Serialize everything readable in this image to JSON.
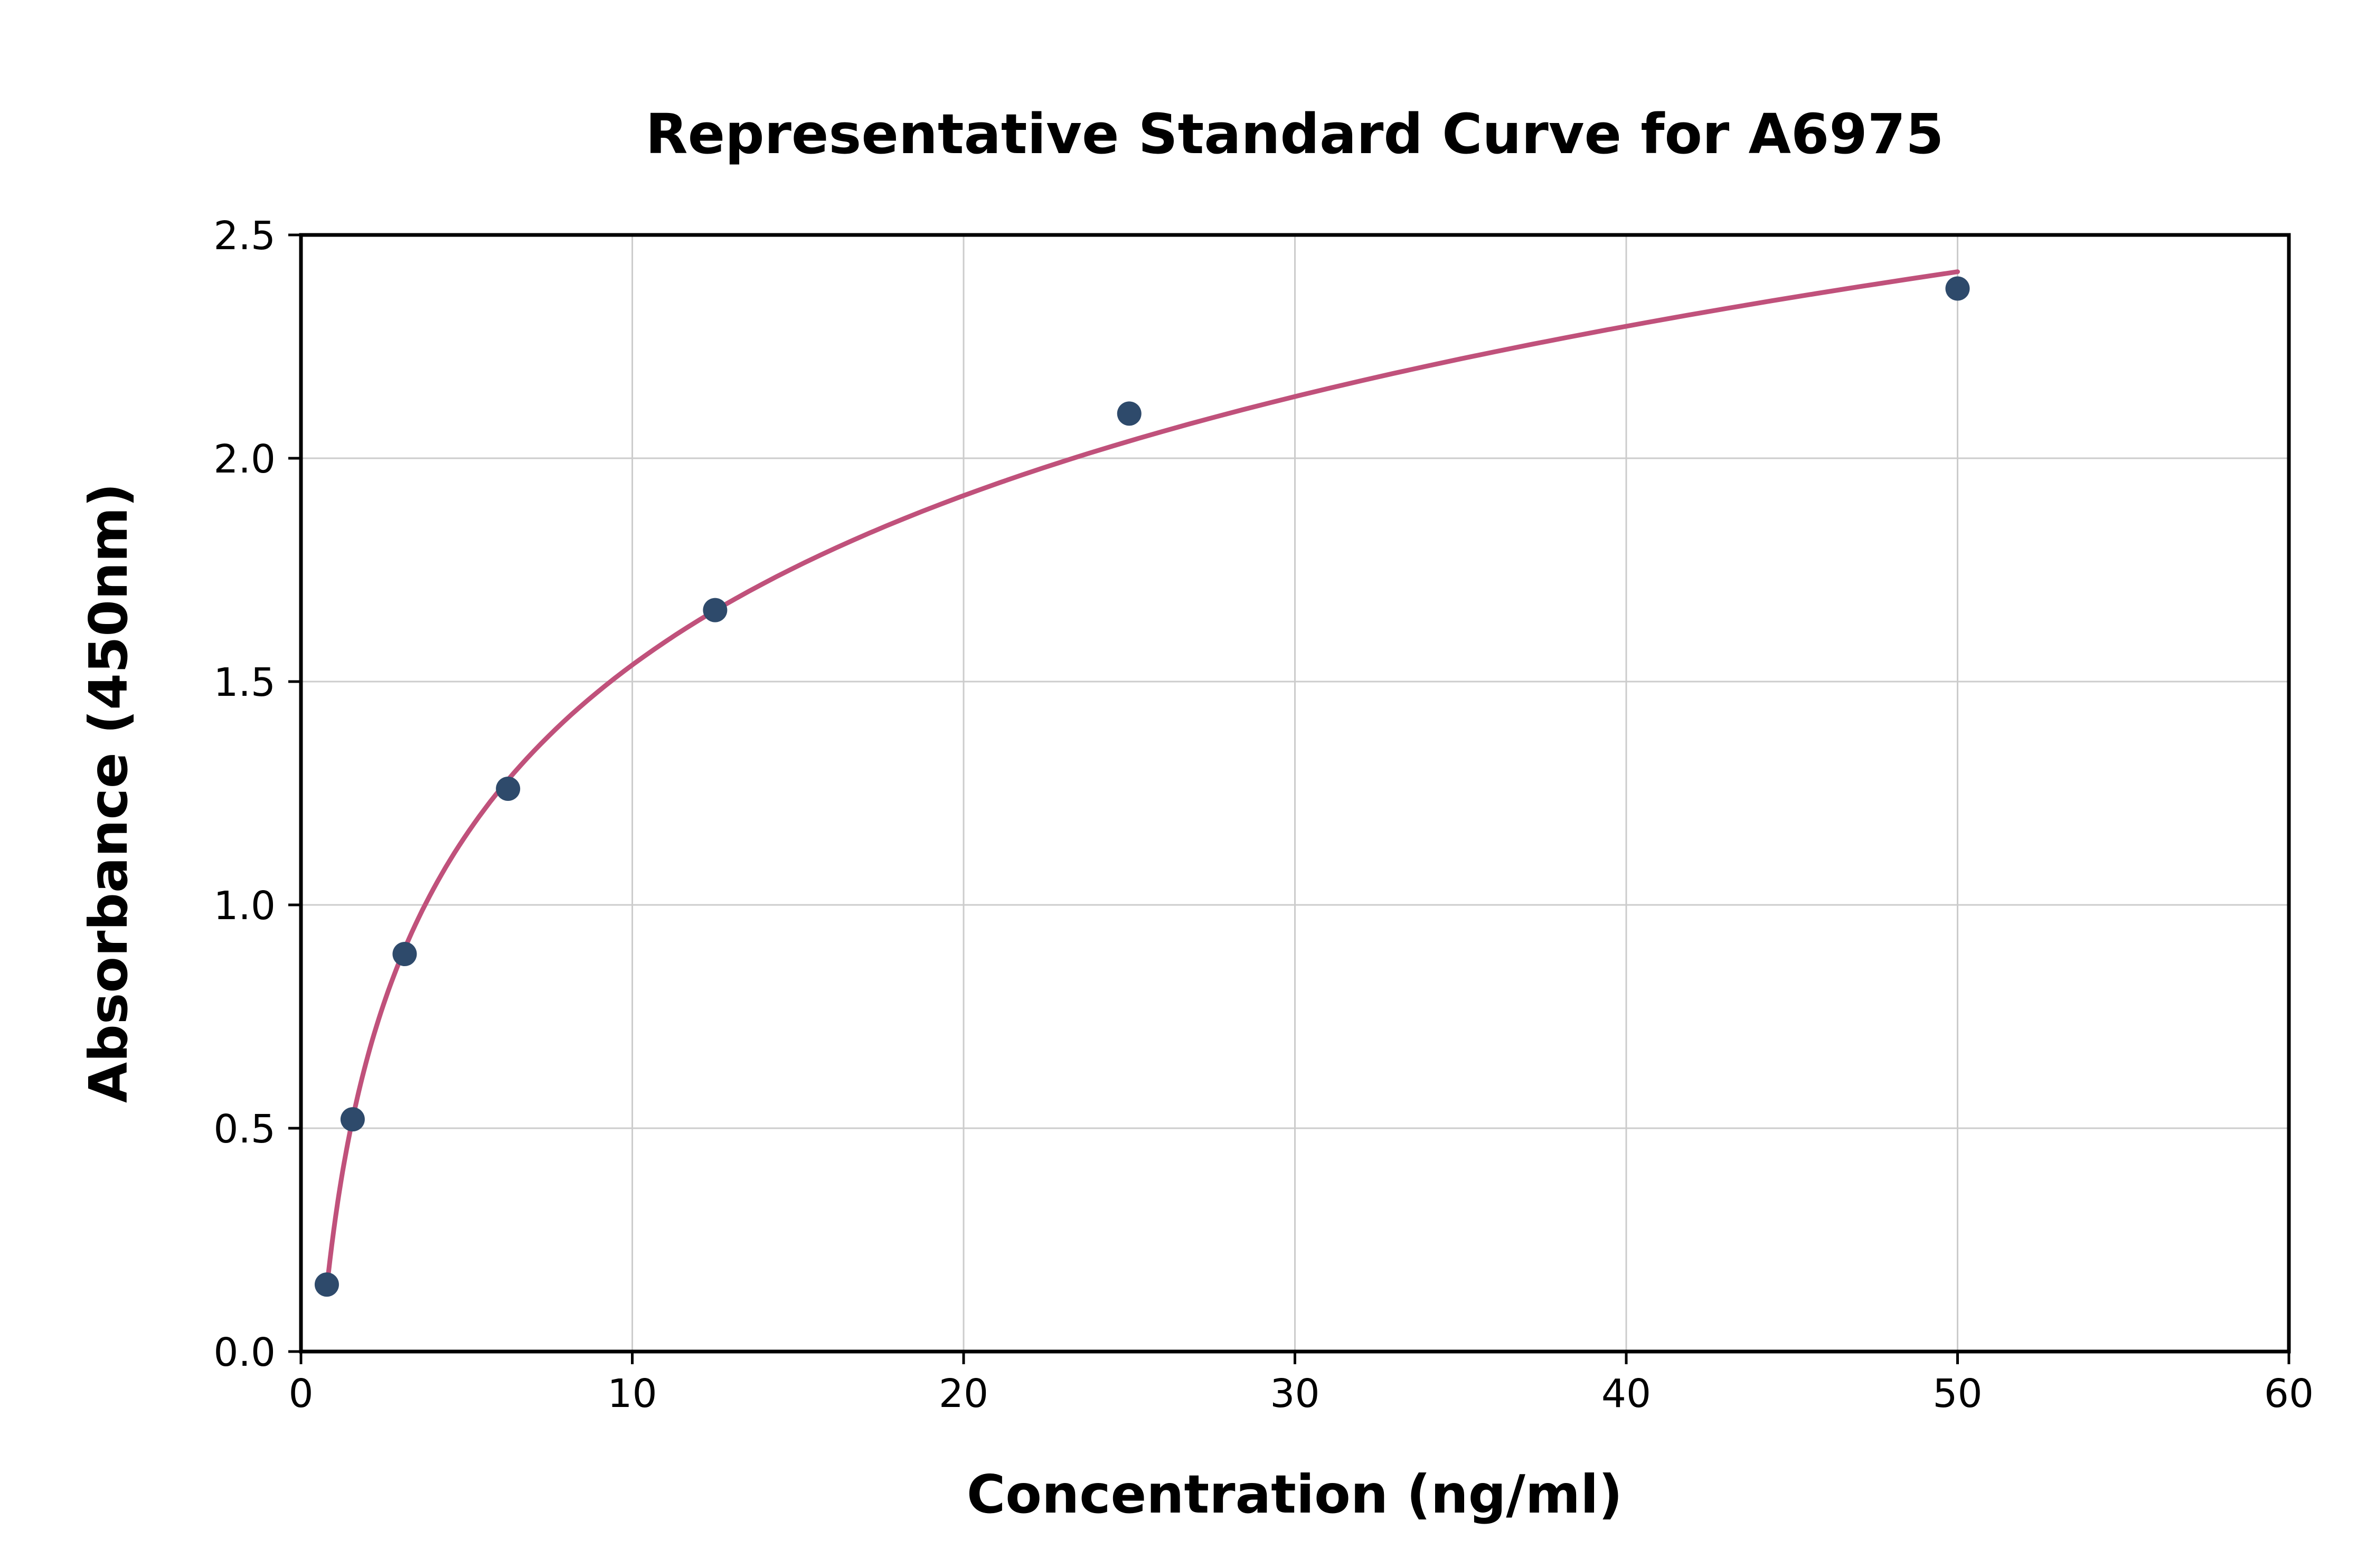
{
  "chart_data": {
    "type": "scatter",
    "title": "Representative Standard Curve for A6975",
    "xlabel": "Concentration (ng/ml)",
    "ylabel": "Absorbance (450nm)",
    "xlim": [
      0,
      60
    ],
    "ylim": [
      0,
      2.5
    ],
    "xticks": [
      0,
      10,
      20,
      30,
      40,
      50,
      60
    ],
    "xtick_labels": [
      "0",
      "10",
      "20",
      "30",
      "40",
      "50",
      "60"
    ],
    "yticks": [
      0,
      0.5,
      1,
      1.5,
      2,
      2.5
    ],
    "ytick_labels": [
      "0.0",
      "0.5",
      "1.0",
      "1.5",
      "2.0",
      "2.5"
    ],
    "grid": true,
    "legend": "none",
    "background": "#ffffff",
    "series": [
      {
        "name": "standard-points",
        "type": "scatter",
        "color": "#2e4a6b",
        "x": [
          0.78,
          1.56,
          3.13,
          6.25,
          12.5,
          25,
          50
        ],
        "y": [
          0.15,
          0.52,
          0.89,
          1.26,
          1.66,
          2.1,
          2.38
        ]
      },
      {
        "name": "fit-curve",
        "type": "line",
        "fit": "logarithmic",
        "color": "#c0517b",
        "x_range": [
          0.78,
          50
        ]
      }
    ]
  }
}
